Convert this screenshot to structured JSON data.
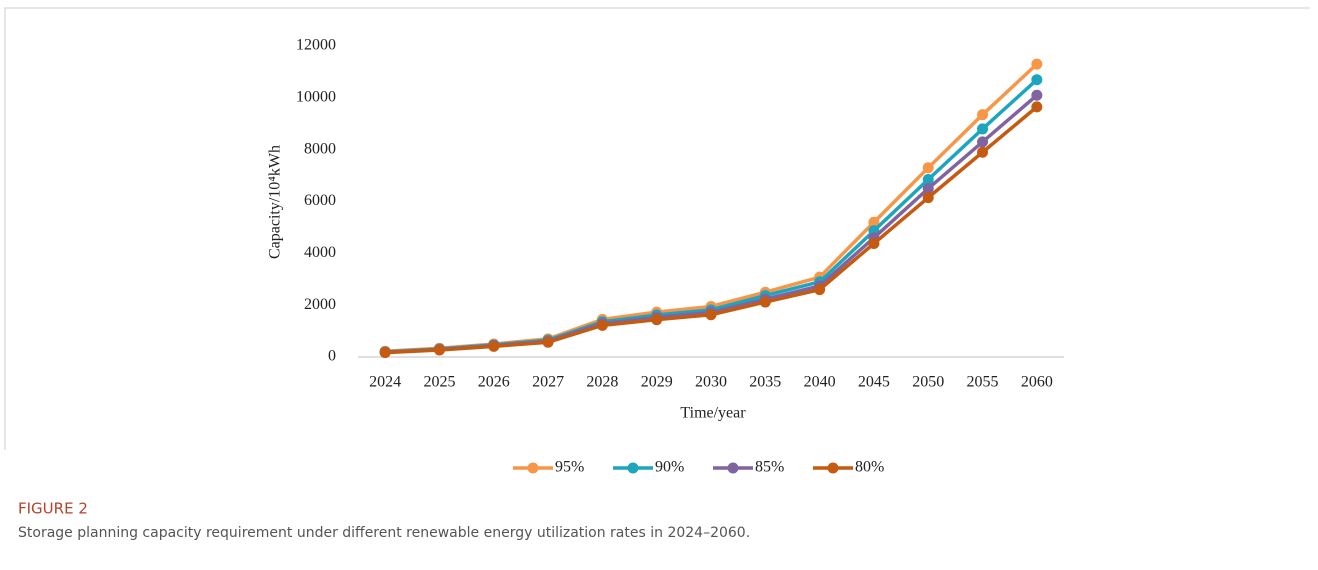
{
  "chart_data": {
    "type": "line",
    "x_label": "Time/year",
    "y_label": "Capacity/10⁴kWh",
    "categories": [
      "2024",
      "2025",
      "2026",
      "2027",
      "2028",
      "2029",
      "2030",
      "2035",
      "2040",
      "2045",
      "2050",
      "2055",
      "2060"
    ],
    "series": [
      {
        "name": "95%",
        "color": "#f79646",
        "values": [
          220,
          340,
          500,
          700,
          1450,
          1730,
          1950,
          2500,
          3080,
          5200,
          7300,
          9350,
          11300
        ]
      },
      {
        "name": "90%",
        "color": "#1ca6be",
        "values": [
          200,
          310,
          470,
          650,
          1360,
          1620,
          1820,
          2370,
          2900,
          4870,
          6850,
          8800,
          10700
        ]
      },
      {
        "name": "85%",
        "color": "#8064a2",
        "values": [
          185,
          290,
          440,
          610,
          1290,
          1530,
          1720,
          2230,
          2740,
          4600,
          6500,
          8300,
          10100
        ]
      },
      {
        "name": "80%",
        "color": "#c55a11",
        "values": [
          170,
          270,
          410,
          570,
          1220,
          1440,
          1630,
          2120,
          2600,
          4380,
          6150,
          7900,
          9650
        ]
      }
    ],
    "ylim": [
      0,
      12000
    ],
    "yticks": [
      0,
      2000,
      4000,
      6000,
      8000,
      10000,
      12000
    ],
    "grid": false,
    "legend": "bottom",
    "figure_label": "FIGURE 2",
    "caption": "Storage planning capacity requirement under different renewable energy utilization rates in 2024–2060."
  }
}
